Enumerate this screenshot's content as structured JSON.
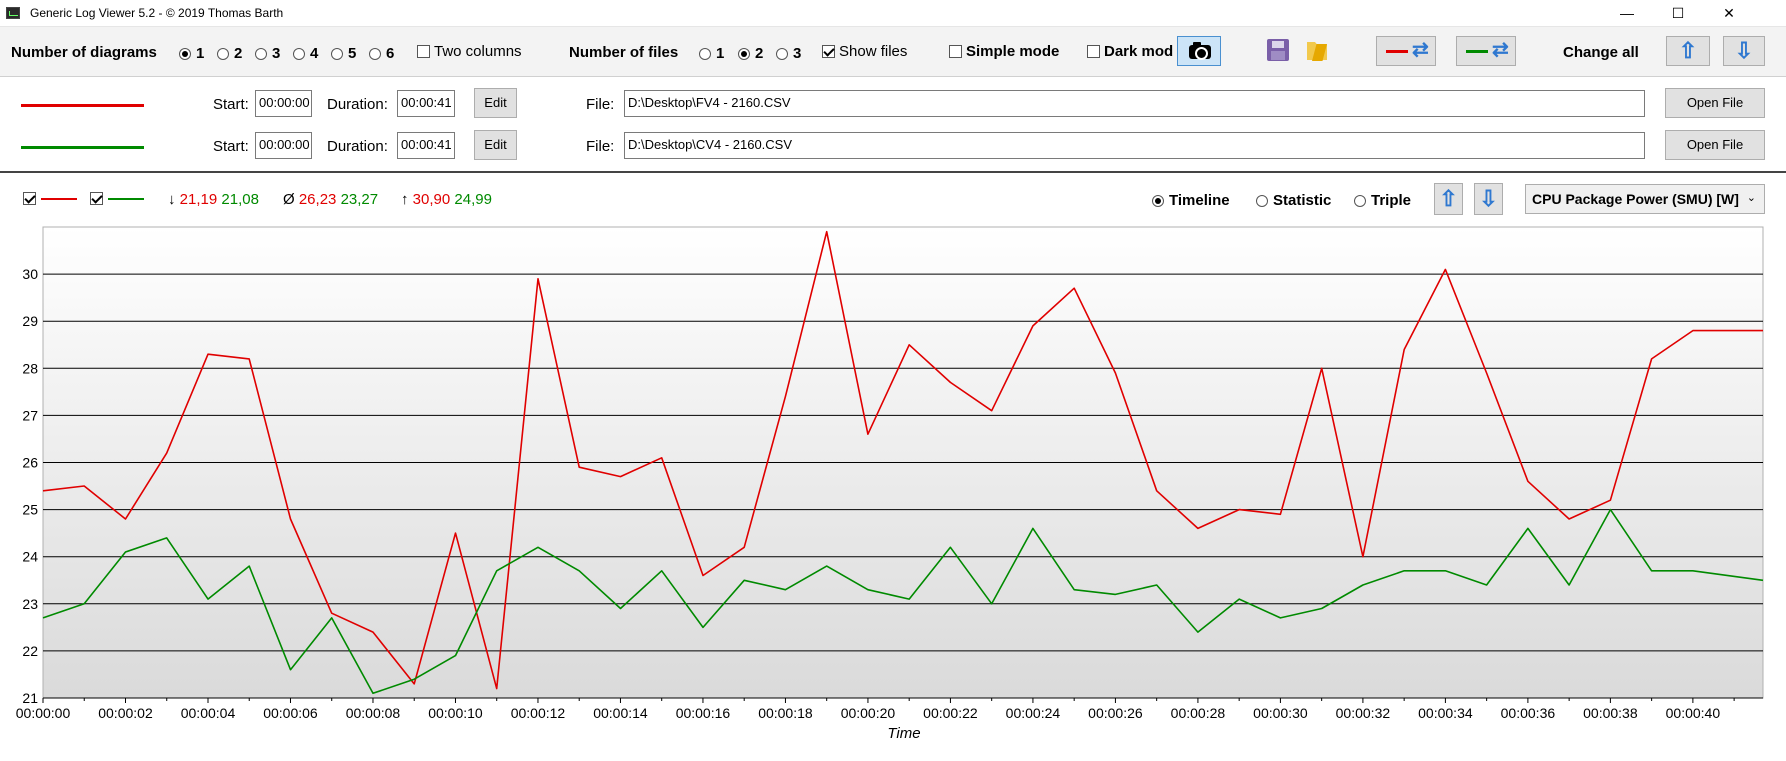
{
  "window": {
    "title": "Generic Log Viewer 5.2 - © 2019 Thomas Barth",
    "minimize": "—",
    "maximize": "☐",
    "close": "✕"
  },
  "toolbar": {
    "diagrams_label": "Number of diagrams",
    "diagram_options": [
      "1",
      "2",
      "3",
      "4",
      "5",
      "6"
    ],
    "diagram_selected": "1",
    "two_columns_label": "Two columns",
    "two_columns_checked": false,
    "files_label": "Number of files",
    "file_options": [
      "1",
      "2",
      "3"
    ],
    "files_selected": "2",
    "show_files_label": "Show files",
    "show_files_checked": true,
    "simple_mode_label": "Simple mode",
    "simple_mode_checked": false,
    "dark_mode_label": "Dark mod",
    "dark_mode_checked": false,
    "change_all_label": "Change all",
    "red_color": "#e00000",
    "green_color": "#008a00"
  },
  "files": [
    {
      "color": "#e00000",
      "start_label": "Start:",
      "start": "00:00:00",
      "duration_label": "Duration:",
      "duration": "00:00:41",
      "edit_label": "Edit",
      "file_label": "File:",
      "path": "D:\\Desktop\\FV4 - 2160.CSV",
      "open_label": "Open File"
    },
    {
      "color": "#008a00",
      "start_label": "Start:",
      "start": "00:00:00",
      "duration_label": "Duration:",
      "duration": "00:00:41",
      "edit_label": "Edit",
      "file_label": "File:",
      "path": "D:\\Desktop\\CV4 - 2160.CSV",
      "open_label": "Open File"
    }
  ],
  "stats": {
    "min_symbol": "↓",
    "min_red": "21,19",
    "min_green": "21,08",
    "avg_symbol": "Ø",
    "avg_red": "26,23",
    "avg_green": "23,27",
    "max_symbol": "↑",
    "max_red": "30,90",
    "max_green": "24,99"
  },
  "view": {
    "timeline_label": "Timeline",
    "statistic_label": "Statistic",
    "triple_label": "Triple",
    "selected": "Timeline",
    "sensor": "CPU Package Power (SMU) [W]",
    "sensor_chevron": "⌄"
  },
  "chart_data": {
    "type": "line",
    "xlabel": "Time",
    "ylabel": "",
    "ylim": [
      21,
      31
    ],
    "yticks": [
      21,
      22,
      23,
      24,
      25,
      26,
      27,
      28,
      29,
      30
    ],
    "xlim": [
      0,
      41.7
    ],
    "xtick_labels": [
      "00:00:00",
      "00:00:02",
      "00:00:04",
      "00:00:06",
      "00:00:08",
      "00:00:10",
      "00:00:12",
      "00:00:14",
      "00:00:16",
      "00:00:18",
      "00:00:20",
      "00:00:22",
      "00:00:24",
      "00:00:26",
      "00:00:28",
      "00:00:30",
      "00:00:32",
      "00:00:34",
      "00:00:36",
      "00:00:38",
      "00:00:40"
    ],
    "grid": true,
    "series": [
      {
        "color": "#e00000",
        "x": [
          0,
          1,
          2,
          3,
          4,
          5,
          6,
          7,
          8,
          9,
          10,
          11,
          12,
          13,
          14,
          15,
          16,
          17,
          18,
          19,
          20,
          21,
          22,
          23,
          24,
          25,
          26,
          27,
          28,
          29,
          30,
          31,
          32,
          33,
          34,
          35,
          36,
          37,
          38,
          39,
          40,
          41.7
        ],
        "values": [
          25.4,
          25.5,
          24.8,
          26.2,
          28.3,
          28.2,
          24.8,
          22.8,
          22.4,
          21.3,
          24.5,
          21.2,
          29.9,
          25.9,
          25.7,
          26.1,
          23.6,
          24.2,
          27.4,
          30.9,
          26.6,
          28.5,
          27.7,
          27.1,
          28.9,
          29.7,
          27.9,
          25.4,
          24.6,
          25.0,
          24.9,
          28.0,
          24.0,
          28.4,
          30.1,
          27.9,
          25.6,
          24.8,
          25.2,
          28.2,
          28.8,
          28.8
        ]
      },
      {
        "color": "#008a00",
        "x": [
          0,
          1,
          2,
          3,
          4,
          5,
          6,
          7,
          8,
          9,
          10,
          11,
          12,
          13,
          14,
          15,
          16,
          17,
          18,
          19,
          20,
          21,
          22,
          23,
          24,
          25,
          26,
          27,
          28,
          29,
          30,
          31,
          32,
          33,
          34,
          35,
          36,
          37,
          38,
          39,
          40,
          41.7
        ],
        "values": [
          22.7,
          23.0,
          24.1,
          24.4,
          23.1,
          23.8,
          21.6,
          22.7,
          21.1,
          21.4,
          21.9,
          23.7,
          24.2,
          23.7,
          22.9,
          23.7,
          22.5,
          23.5,
          23.3,
          23.8,
          23.3,
          23.1,
          24.2,
          23.0,
          24.6,
          23.3,
          23.2,
          23.4,
          22.4,
          23.1,
          22.7,
          22.9,
          23.4,
          23.7,
          23.7,
          23.4,
          24.6,
          23.4,
          25.0,
          23.7,
          23.7,
          23.5
        ]
      }
    ]
  }
}
